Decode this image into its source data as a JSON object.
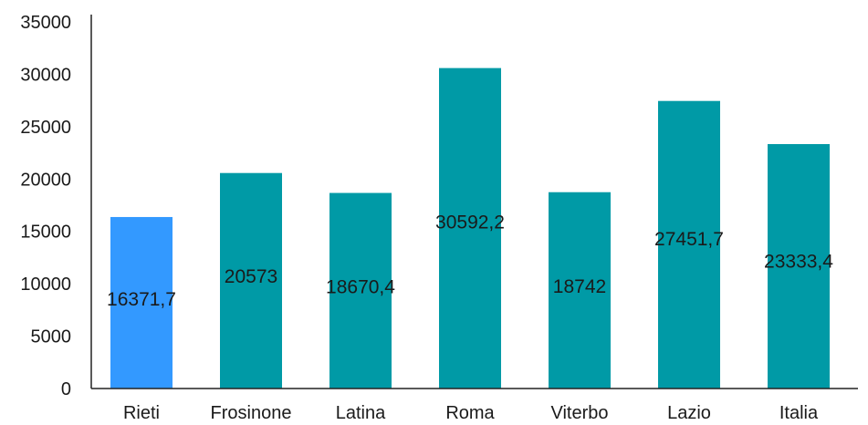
{
  "chart_data": {
    "type": "bar",
    "title": "",
    "xlabel": "",
    "ylabel": "",
    "categories": [
      "Rieti",
      "Frosinone",
      "Latina",
      "Roma",
      "Viterbo",
      "Lazio",
      "Italia"
    ],
    "values": [
      16371.7,
      20573,
      18670.4,
      30592.2,
      18742,
      27451.7,
      23333.4
    ],
    "data_labels": [
      "16371,7",
      "20573",
      "18670,4",
      "30592,2",
      "18742",
      "27451,7",
      "23333,4"
    ],
    "yticks": [
      "0",
      "5000",
      "10000",
      "15000",
      "20000",
      "25000",
      "30000",
      "35000"
    ],
    "ylim": [
      0,
      35000
    ],
    "grid": false,
    "legend": "none",
    "highlight_index": 0,
    "colors": {
      "highlight": "#3399ff",
      "bar": "#009aa6",
      "axis": "#222222",
      "text": "#1a1a1a"
    }
  }
}
